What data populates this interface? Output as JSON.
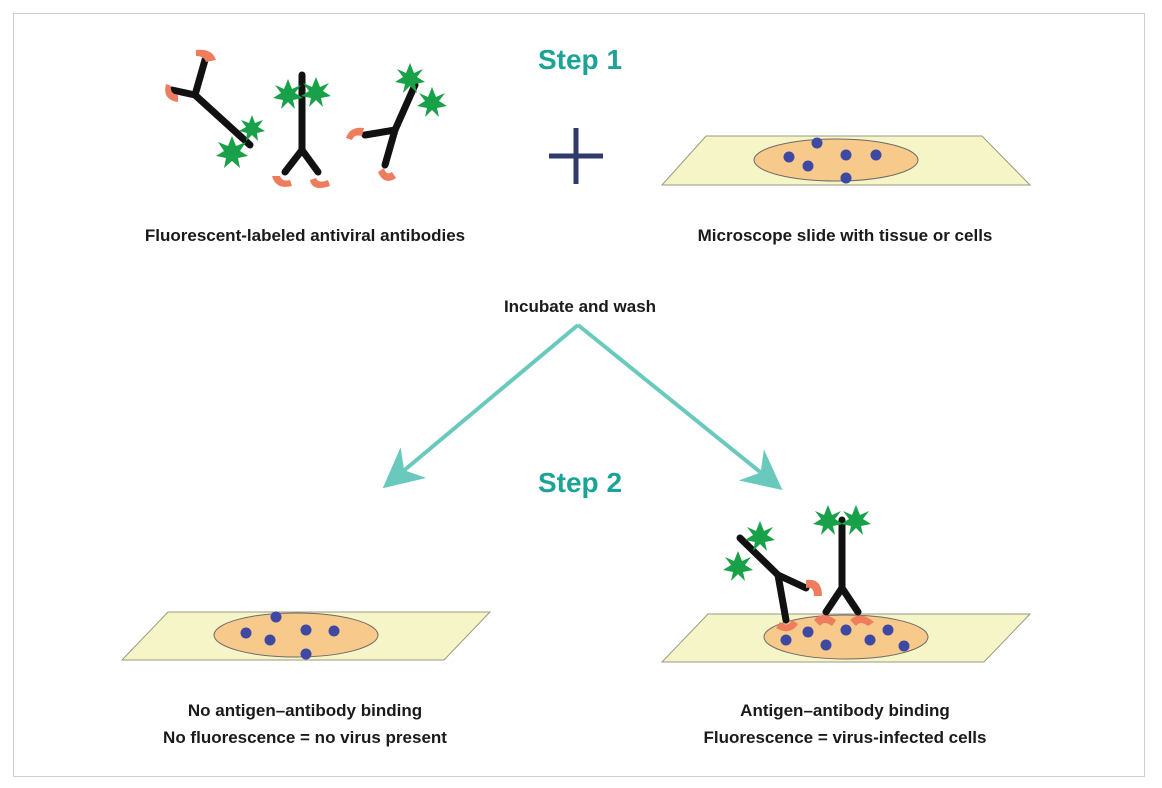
{
  "steps": {
    "step1": "Step 1",
    "step2": "Step 2"
  },
  "labels": {
    "antibodies": "Fluorescent-labeled antiviral antibodies",
    "slide": "Microscope slide with tissue or cells",
    "incubate": "Incubate and wash",
    "negative_line1": "No antigen–antibody binding",
    "negative_line2": "No fluorescence = no virus present",
    "positive_line1": "Antigen–antibody binding",
    "positive_line2": "Fluorescence = virus-infected cells"
  },
  "colors": {
    "step_text": "#1aa396",
    "arrow": "#69c9bd",
    "plus": "#2f3a6b",
    "slide_fill": "#f6f5c8",
    "tissue_fill": "#f7c98a",
    "cell": "#3e49a3",
    "fluorophore": "#19a14a",
    "binding_site": "#ee7d5d",
    "antibody": "#111111"
  }
}
